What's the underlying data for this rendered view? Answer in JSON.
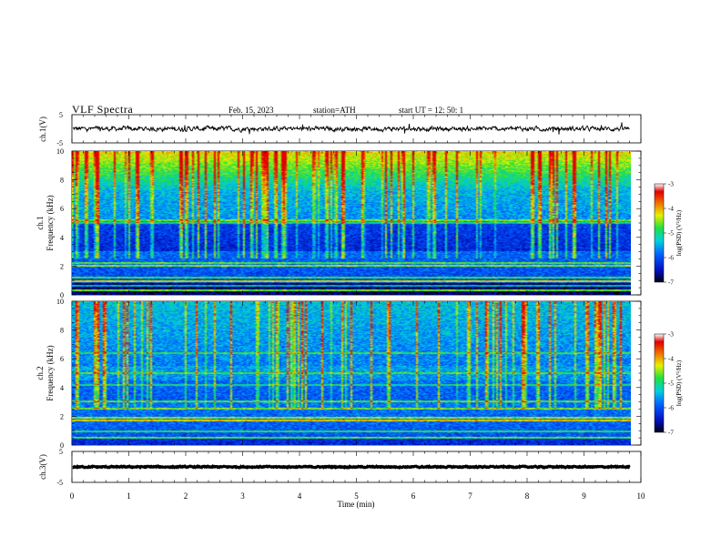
{
  "header": {
    "title": "VLF  Spectra",
    "date": "Feb. 15, 2023",
    "station": "station=ATH",
    "start_ut": "start  UT  =   12: 50: 1"
  },
  "chart_data": [
    {
      "type": "line",
      "ylabel": "ch.1(V)",
      "ylim": [
        -5,
        5
      ],
      "yticks": [
        "5",
        "-5"
      ],
      "xlim": [
        0,
        10
      ],
      "x_end_min": 9.8,
      "baseline": 0,
      "amplitude": 0.6
    },
    {
      "type": "heatmap",
      "ylabel": "ch.1\nFrequency (kHz)",
      "ylabel_lines": [
        "ch.1",
        "Frequency (kHz)"
      ],
      "xlim": [
        0,
        10
      ],
      "ylim": [
        0,
        10
      ],
      "yticks": [
        "0",
        "2",
        "4",
        "6",
        "8",
        "10"
      ],
      "colorbar": {
        "label": "log(PSD) (V²/Hz)",
        "ticks": [
          "-3",
          "-4",
          "-5",
          "-6",
          "-7"
        ],
        "range": [
          -7,
          -3
        ]
      }
    },
    {
      "type": "heatmap",
      "ylabel_lines": [
        "ch.2",
        "Frequency (kHz)"
      ],
      "xlim": [
        0,
        10
      ],
      "ylim": [
        0,
        10
      ],
      "yticks": [
        "0",
        "2",
        "4",
        "6",
        "8",
        "10"
      ],
      "colorbar": {
        "label": "log(PSD) (V²/Hz)",
        "ticks": [
          "-3",
          "-4",
          "-5",
          "-6",
          "-7"
        ],
        "range": [
          -7,
          -3
        ]
      }
    },
    {
      "type": "line",
      "ylabel": "ch.3(V)",
      "ylim": [
        -5,
        5
      ],
      "yticks": [
        "5",
        "-5"
      ],
      "xlim": [
        0,
        10
      ],
      "x_end_min": 9.8,
      "baseline": 0,
      "amplitude": 0.15
    }
  ],
  "x_axis": {
    "label": "Time  (min)",
    "ticks": [
      "0",
      "1",
      "2",
      "3",
      "4",
      "5",
      "6",
      "7",
      "8",
      "9",
      "10"
    ]
  },
  "colors": {
    "spectrum_low": "#000018",
    "spectrum_mid_low": "#0a28d0",
    "spectrum_mid": "#18c8e8",
    "spectrum_mid_high": "#20e040",
    "spectrum_high": "#f0f000",
    "spectrum_top": "#e03010"
  }
}
